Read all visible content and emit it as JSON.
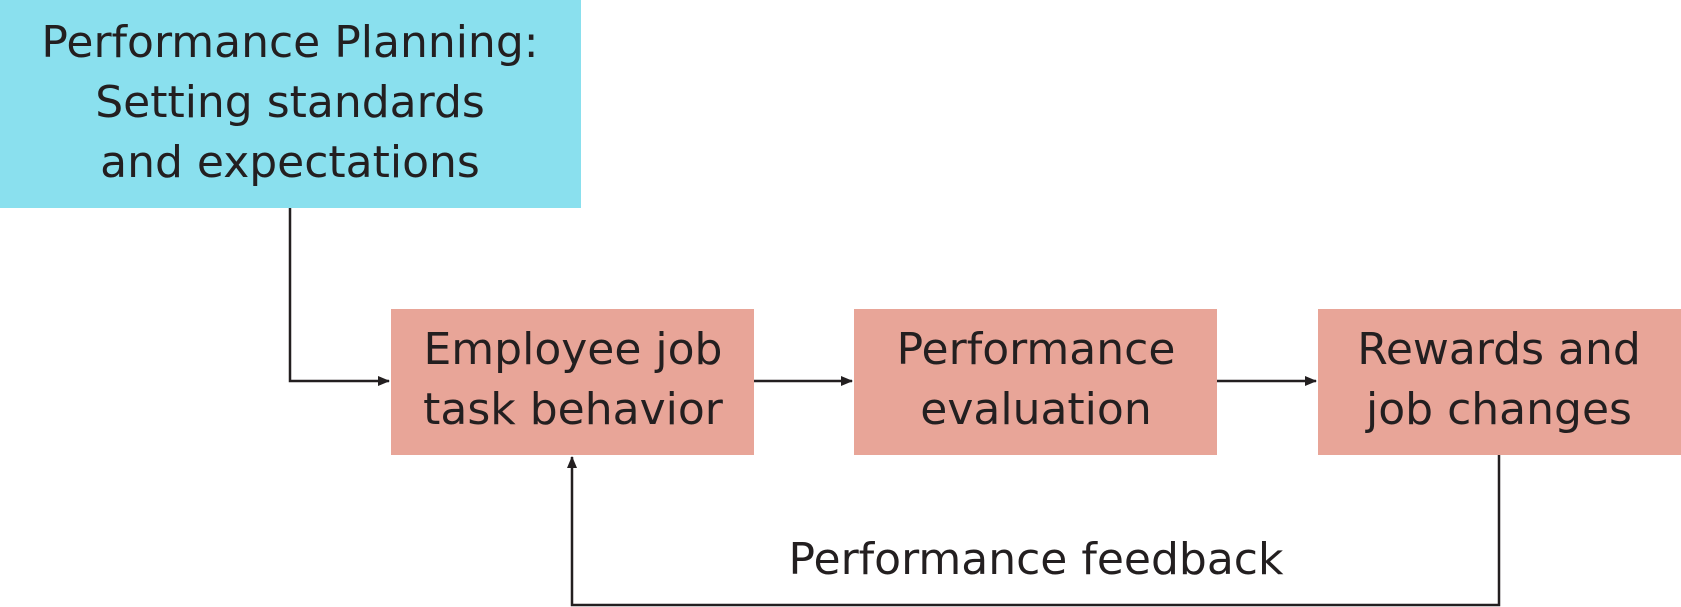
{
  "nodes": [
    {
      "lines": [
        "Performance Planning:",
        "Setting standards",
        "and expectations"
      ]
    },
    {
      "lines": [
        "Employee job",
        "task behavior"
      ]
    },
    {
      "lines": [
        "Performance",
        "evaluation"
      ]
    },
    {
      "lines": [
        "Rewards and",
        "job changes"
      ]
    }
  ],
  "feedback_label": "Performance feedback"
}
